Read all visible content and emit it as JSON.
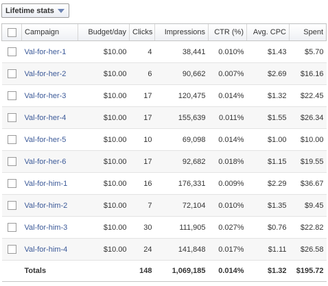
{
  "stats_dropdown": {
    "label": "Lifetime stats",
    "icon": "chevron-down-icon"
  },
  "table": {
    "columns": {
      "campaign": "Campaign",
      "budget": "Budget/day",
      "clicks": "Clicks",
      "impressions": "Impressions",
      "ctr": "CTR (%)",
      "cpc": "Avg. CPC",
      "spent": "Spent"
    },
    "rows": [
      {
        "campaign": "Val-for-her-1",
        "budget": "$10.00",
        "clicks": "4",
        "impressions": "38,441",
        "ctr": "0.010%",
        "cpc": "$1.43",
        "spent": "$5.70"
      },
      {
        "campaign": "Val-for-her-2",
        "budget": "$10.00",
        "clicks": "6",
        "impressions": "90,662",
        "ctr": "0.007%",
        "cpc": "$2.69",
        "spent": "$16.16"
      },
      {
        "campaign": "Val-for-her-3",
        "budget": "$10.00",
        "clicks": "17",
        "impressions": "120,475",
        "ctr": "0.014%",
        "cpc": "$1.32",
        "spent": "$22.45"
      },
      {
        "campaign": "Val-for-her-4",
        "budget": "$10.00",
        "clicks": "17",
        "impressions": "155,639",
        "ctr": "0.011%",
        "cpc": "$1.55",
        "spent": "$26.34"
      },
      {
        "campaign": "Val-for-her-5",
        "budget": "$10.00",
        "clicks": "10",
        "impressions": "69,098",
        "ctr": "0.014%",
        "cpc": "$1.00",
        "spent": "$10.00"
      },
      {
        "campaign": "Val-for-her-6",
        "budget": "$10.00",
        "clicks": "17",
        "impressions": "92,682",
        "ctr": "0.018%",
        "cpc": "$1.15",
        "spent": "$19.55"
      },
      {
        "campaign": "Val-for-him-1",
        "budget": "$10.00",
        "clicks": "16",
        "impressions": "176,331",
        "ctr": "0.009%",
        "cpc": "$2.29",
        "spent": "$36.67"
      },
      {
        "campaign": "Val-for-him-2",
        "budget": "$10.00",
        "clicks": "7",
        "impressions": "72,104",
        "ctr": "0.010%",
        "cpc": "$1.35",
        "spent": "$9.45"
      },
      {
        "campaign": "Val-for-him-3",
        "budget": "$10.00",
        "clicks": "30",
        "impressions": "111,905",
        "ctr": "0.027%",
        "cpc": "$0.76",
        "spent": "$22.82"
      },
      {
        "campaign": "Val-for-him-4",
        "budget": "$10.00",
        "clicks": "24",
        "impressions": "141,848",
        "ctr": "0.017%",
        "cpc": "$1.11",
        "spent": "$26.58"
      }
    ],
    "totals": {
      "label": "Totals",
      "clicks": "148",
      "impressions": "1,069,185",
      "ctr": "0.014%",
      "cpc": "$1.32",
      "spent": "$195.72"
    }
  }
}
